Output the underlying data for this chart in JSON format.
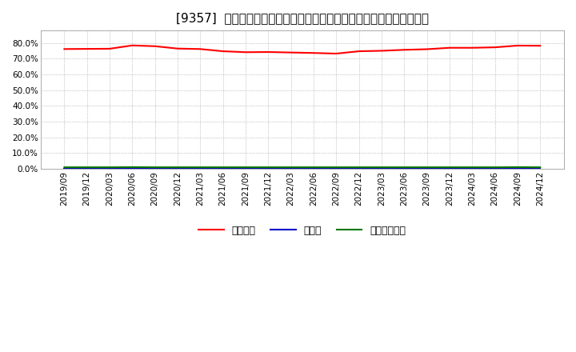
{
  "title": "[9357]  自己資本、のれん、繰延税金資産の総資産に対する比率の推移",
  "ylim": [
    0.0,
    0.88
  ],
  "yticks": [
    0.0,
    0.1,
    0.2,
    0.3,
    0.4,
    0.5,
    0.6,
    0.7,
    0.8
  ],
  "background_color": "#ffffff",
  "plot_bg_color": "#ffffff",
  "grid_color": "#999999",
  "x_labels": [
    "2019/09",
    "2019/12",
    "2020/03",
    "2020/06",
    "2020/09",
    "2020/12",
    "2021/03",
    "2021/06",
    "2021/09",
    "2021/12",
    "2022/03",
    "2022/06",
    "2022/09",
    "2022/12",
    "2023/03",
    "2023/06",
    "2023/09",
    "2023/12",
    "2024/03",
    "2024/06",
    "2024/09",
    "2024/12"
  ],
  "jikoshihon": [
    0.762,
    0.763,
    0.764,
    0.785,
    0.78,
    0.765,
    0.762,
    0.748,
    0.742,
    0.743,
    0.74,
    0.737,
    0.733,
    0.748,
    0.751,
    0.757,
    0.761,
    0.77,
    0.77,
    0.773,
    0.784,
    0.783
  ],
  "noren": [
    0.0,
    0.0,
    0.0,
    0.0,
    0.0,
    0.0,
    0.0,
    0.0,
    0.0,
    0.0,
    0.0,
    0.0,
    0.0,
    0.0,
    0.0,
    0.0,
    0.0,
    0.0,
    0.0,
    0.0,
    0.0,
    0.0
  ],
  "kuenzeichisan": [
    0.01,
    0.01,
    0.01,
    0.011,
    0.01,
    0.01,
    0.01,
    0.01,
    0.01,
    0.01,
    0.01,
    0.01,
    0.01,
    0.01,
    0.01,
    0.01,
    0.01,
    0.01,
    0.01,
    0.01,
    0.011,
    0.01
  ],
  "line_color_jikoshihon": "#ff0000",
  "line_color_noren": "#0000cc",
  "line_color_kuenzeichisan": "#007700",
  "legend_labels": [
    "自己資本",
    "のれん",
    "繰延税金資産"
  ],
  "title_fontsize": 11,
  "tick_fontsize": 7.5
}
